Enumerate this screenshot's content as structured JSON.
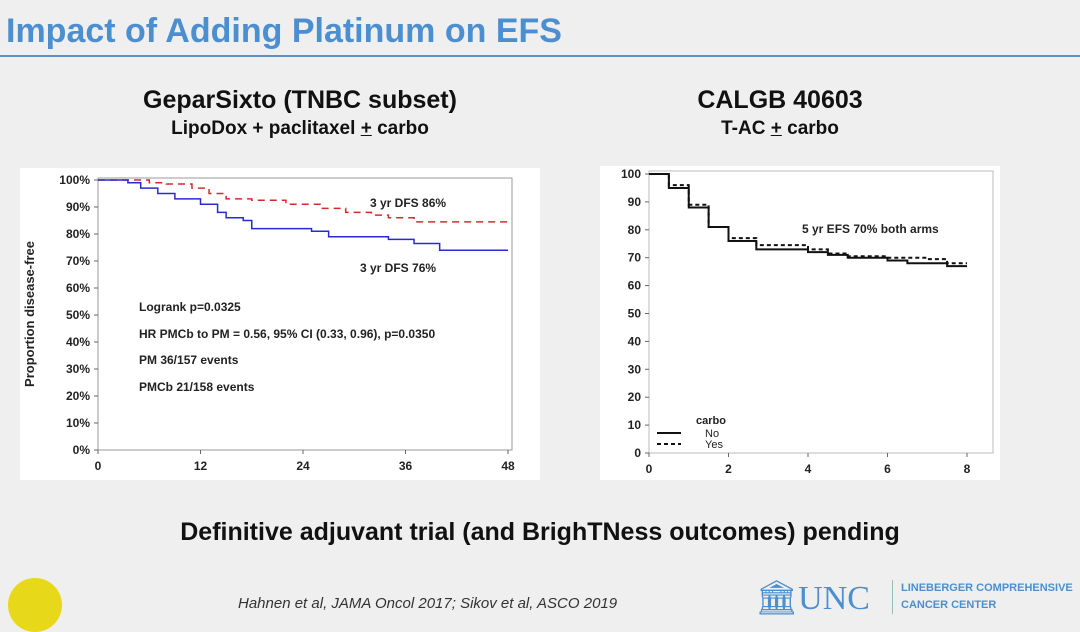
{
  "slide": {
    "title": "Impact of Adding Platinum on EFS",
    "footer": "Definitive adjuvant trial (and BrighTNess outcomes) pending",
    "citation": "Hahnen et al, JAMA Oncol 2017; Sikov et al, ASCO 2019",
    "logo_text": "UNC",
    "logo_sub1": "LINEBERGER COMPREHENSIVE",
    "logo_sub2": "CANCER CENTER"
  },
  "chart_data": [
    {
      "type": "line",
      "title": "GeparSixto (TNBC subset)",
      "subtitle": "LipoDox + paclitaxel ± carbo",
      "subtitle_a": "LipoDox + paclitaxel ",
      "subtitle_b": "+",
      "subtitle_c": " carbo",
      "xlabel": "",
      "ylabel": "Proportion disease-free",
      "xlim": [
        0,
        48
      ],
      "ylim": [
        0,
        100
      ],
      "xticks": [
        "0",
        "12",
        "24",
        "36",
        "48"
      ],
      "yticks": [
        "0%",
        "10%",
        "20%",
        "30%",
        "40%",
        "50%",
        "60%",
        "70%",
        "80%",
        "90%",
        "100%"
      ],
      "annotations": [
        "3 yr DFS 86%",
        "3 yr DFS 76%",
        "Logrank p=0.0325",
        "HR PMCb to PM = 0.56, 95% CI (0.33, 0.96),  p=0.0350",
        "PM 36/157 events",
        "PMCb 21/158 events"
      ],
      "series": [
        {
          "name": "PMCb",
          "color": "#d42a2a",
          "dash": true,
          "x": [
            0,
            4,
            6,
            8,
            11,
            13,
            15,
            18,
            22,
            26,
            29,
            32,
            34,
            37,
            48
          ],
          "y": [
            100,
            100,
            99,
            98.5,
            97,
            95,
            93,
            92.5,
            91,
            89.5,
            88,
            87,
            86,
            84.5,
            84.5
          ]
        },
        {
          "name": "PM",
          "color": "#2a2ad4",
          "dash": false,
          "x": [
            0,
            3.5,
            5,
            7,
            9,
            12,
            14,
            15,
            17,
            18,
            25,
            27,
            34,
            37,
            40,
            48
          ],
          "y": [
            100,
            99,
            97,
            95,
            93,
            91,
            88,
            86,
            85,
            82,
            81,
            79,
            78,
            76.5,
            74,
            74
          ]
        }
      ]
    },
    {
      "type": "line",
      "title": "CALGB 40603",
      "subtitle_a": "T-AC ",
      "subtitle_b": "+",
      "subtitle_c": " carbo",
      "xlabel": "",
      "ylabel": "",
      "xlim": [
        0,
        8
      ],
      "ylim": [
        0,
        100
      ],
      "xticks": [
        "0",
        "2",
        "4",
        "6",
        "8"
      ],
      "yticks": [
        "0",
        "10",
        "20",
        "30",
        "40",
        "50",
        "60",
        "70",
        "80",
        "90",
        "100"
      ],
      "annotations": [
        "5 yr EFS 70% both arms"
      ],
      "legend_title": "carbo",
      "legend": "bottom-left",
      "series": [
        {
          "name": "No",
          "color": "#111111",
          "dash": false,
          "x": [
            0,
            0.5,
            1,
            1.5,
            2,
            2.7,
            4,
            4.5,
            5,
            6,
            6.5,
            7.5,
            8
          ],
          "y": [
            100,
            95,
            88,
            81,
            76,
            73,
            72,
            71,
            70,
            69,
            68,
            67,
            67
          ]
        },
        {
          "name": "Yes",
          "color": "#111111",
          "dash": true,
          "x": [
            0,
            0.5,
            1,
            1.5,
            2,
            2.7,
            4,
            4.5,
            5,
            6,
            7,
            7.5,
            8
          ],
          "y": [
            100,
            96,
            89,
            81,
            77,
            74.5,
            73,
            71.5,
            70.5,
            70,
            69.5,
            68,
            68
          ]
        }
      ]
    }
  ]
}
